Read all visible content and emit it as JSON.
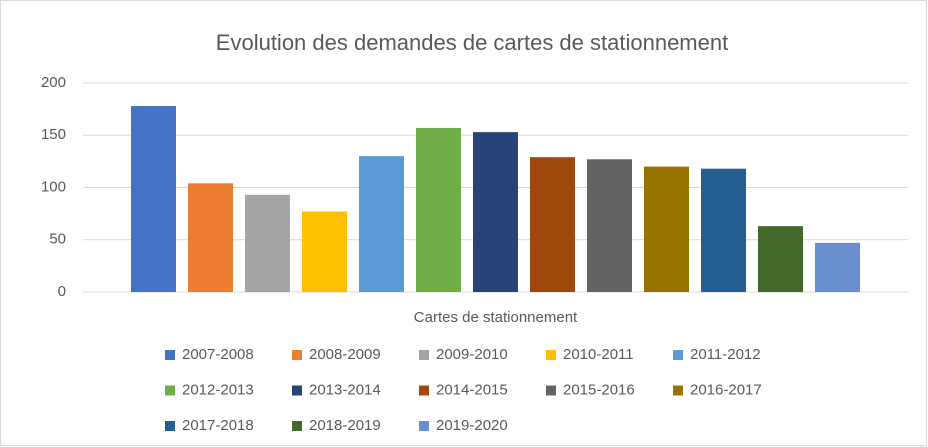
{
  "chart_data": {
    "type": "bar",
    "title": "Evolution des demandes de cartes de stationnement",
    "categories": [
      "Cartes de stationnement"
    ],
    "series": [
      {
        "name": "2007-2008",
        "color": "#4472c4",
        "values": [
          178
        ]
      },
      {
        "name": "2008-2009",
        "color": "#ed7d31",
        "values": [
          104
        ]
      },
      {
        "name": "2009-2010",
        "color": "#a5a5a5",
        "values": [
          93
        ]
      },
      {
        "name": "2010-2011",
        "color": "#ffc000",
        "values": [
          77
        ]
      },
      {
        "name": "2011-2012",
        "color": "#5b9bd5",
        "values": [
          130
        ]
      },
      {
        "name": "2012-2013",
        "color": "#70ad47",
        "values": [
          157
        ]
      },
      {
        "name": "2013-2014",
        "color": "#264478",
        "values": [
          153
        ]
      },
      {
        "name": "2014-2015",
        "color": "#9e480e",
        "values": [
          129
        ]
      },
      {
        "name": "2015-2016",
        "color": "#636363",
        "values": [
          127
        ]
      },
      {
        "name": "2016-2017",
        "color": "#997300",
        "values": [
          120
        ]
      },
      {
        "name": "2017-2018",
        "color": "#255e91",
        "values": [
          118
        ]
      },
      {
        "name": "2018-2019",
        "color": "#43682b",
        "values": [
          63
        ]
      },
      {
        "name": "2019-2020",
        "color": "#698ed0",
        "values": [
          47
        ]
      }
    ],
    "ylim": [
      0,
      200
    ],
    "yticks": [
      0,
      50,
      100,
      150,
      200
    ],
    "grid": true,
    "legend": "bottom"
  }
}
